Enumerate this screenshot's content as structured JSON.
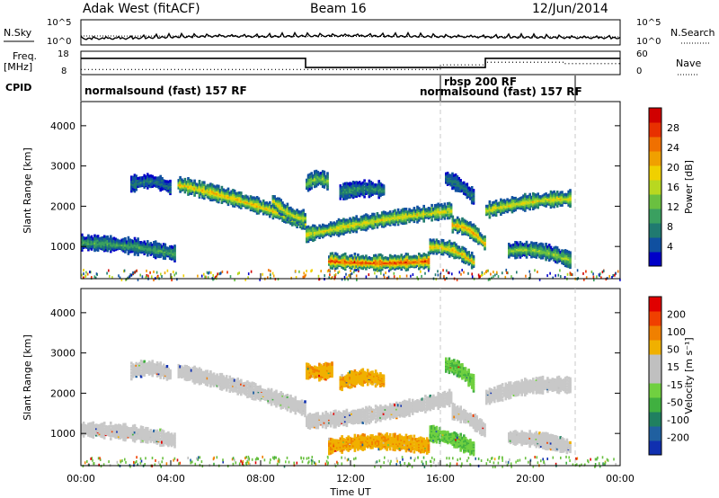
{
  "header": {
    "station": "Adak West (fitACF)",
    "beam": "Beam 16",
    "date": "12/Jun/2014"
  },
  "strip": {
    "nsky_label": "N.Sky",
    "nsearch_label": "N.Search",
    "noise_ticks": [
      "10^5",
      "10^0"
    ],
    "freq_label": "Freq.",
    "freq_unit": "[MHz]",
    "freq_ticks": [
      "18",
      "8"
    ],
    "nave_label": "Nave",
    "nave_ticks": [
      "60",
      "0"
    ],
    "cpid_label": "CPID",
    "cpid_segments": [
      {
        "label": "normalsound (fast) 157 RF"
      },
      {
        "label": "rbsp 200 RF"
      },
      {
        "label": "normalsound (fast) 157 RF"
      }
    ]
  },
  "axes": {
    "ylabel": "Slant Range [km]",
    "yticks": [
      "1000",
      "2000",
      "3000",
      "4000"
    ],
    "xlabel": "Time UT",
    "xticks": [
      "00:00",
      "04:00",
      "08:00",
      "12:00",
      "16:00",
      "20:00",
      "00:00"
    ]
  },
  "colorbars": {
    "power": {
      "label": "Power [dB]",
      "ticks": [
        "28",
        "24",
        "20",
        "16",
        "12",
        "8",
        "4"
      ],
      "colors": [
        "#0000c8",
        "#1050a0",
        "#207a70",
        "#3aa060",
        "#6ac040",
        "#b8d820",
        "#f0d000",
        "#f0a000",
        "#f07000",
        "#e83000",
        "#d00000"
      ]
    },
    "velocity": {
      "label": "Velocity [m s⁻¹]",
      "ticks": [
        "200",
        "100",
        "50",
        "15",
        "-15",
        "-50",
        "-100",
        "-200"
      ],
      "colors": [
        "#1030b0",
        "#2060a0",
        "#208060",
        "#40b040",
        "#70d040",
        "#c0c0c0",
        "#c0c0c0",
        "#f0b000",
        "#f08000",
        "#f04000",
        "#e00000"
      ]
    }
  },
  "chart_data": [
    {
      "type": "line",
      "title": "N.Sky / N.Search",
      "x_unit": "hours UT",
      "x": [
        0,
        2,
        4,
        6,
        8,
        10,
        12,
        14,
        16,
        18,
        20,
        22,
        24
      ],
      "series": [
        {
          "name": "N.Sky",
          "values": [
            0.2,
            0.22,
            0.28,
            0.32,
            0.3,
            0.33,
            0.34,
            0.32,
            0.3,
            0.28,
            0.27,
            0.25,
            0.24
          ]
        }
      ],
      "ylim": [
        0,
        1
      ]
    },
    {
      "type": "line",
      "title": "Freq. / Nave",
      "x_unit": "hours UT",
      "segments_freq_mhz": [
        {
          "x0": 0.0,
          "x1": 10.0,
          "value": 15.3
        },
        {
          "x0": 10.0,
          "x1": 18.0,
          "value": 10.7
        },
        {
          "x0": 18.0,
          "x1": 24.0,
          "value": 15.3
        }
      ],
      "segments_nave": [
        {
          "x0": 0.0,
          "x1": 10.0,
          "value": 10
        },
        {
          "x0": 10.0,
          "x1": 16.0,
          "value": 10
        },
        {
          "x0": 16.0,
          "x1": 18.0,
          "value": 24
        },
        {
          "x0": 18.0,
          "x1": 21.5,
          "value": 32
        },
        {
          "x0": 21.5,
          "x1": 24.0,
          "value": 28
        }
      ],
      "freq_range": [
        8,
        18
      ],
      "nave_range": [
        0,
        60
      ]
    },
    {
      "type": "heatmap",
      "title": "Power [dB]",
      "x_unit": "hours UT",
      "xlim": [
        0,
        24
      ],
      "ylim": [
        200,
        4600
      ],
      "ylabel": "Slant Range [km]",
      "bands": [
        {
          "x0": 0.0,
          "x1": 4.2,
          "r0": 1100,
          "r1": 820,
          "level": 10
        },
        {
          "x0": 2.2,
          "x1": 4.0,
          "r0": 2550,
          "r1": 2450,
          "level": 6
        },
        {
          "x0": 4.3,
          "x1": 10.0,
          "r0": 2550,
          "r1": 1600,
          "level": 20
        },
        {
          "x0": 8.5,
          "x1": 10.0,
          "r0": 2150,
          "r1": 1700,
          "level": 18
        },
        {
          "x0": 10.0,
          "x1": 16.5,
          "r0": 1300,
          "r1": 1900,
          "level": 18
        },
        {
          "x0": 16.5,
          "x1": 18.0,
          "r0": 1550,
          "r1": 1050,
          "level": 22
        },
        {
          "x0": 11.0,
          "x1": 15.5,
          "r0": 650,
          "r1": 650,
          "level": 27
        },
        {
          "x0": 10.0,
          "x1": 11.0,
          "r0": 2550,
          "r1": 2600,
          "level": 14
        },
        {
          "x0": 11.5,
          "x1": 13.5,
          "r0": 2350,
          "r1": 2400,
          "level": 8
        },
        {
          "x0": 15.5,
          "x1": 17.5,
          "r0": 1000,
          "r1": 600,
          "level": 20
        },
        {
          "x0": 18.0,
          "x1": 21.8,
          "r0": 1900,
          "r1": 2200,
          "level": 18
        },
        {
          "x0": 19.0,
          "x1": 21.8,
          "r0": 900,
          "r1": 650,
          "level": 14
        },
        {
          "x0": 16.2,
          "x1": 17.5,
          "r0": 2700,
          "r1": 2200,
          "level": 6
        }
      ]
    },
    {
      "type": "heatmap",
      "title": "Velocity [m s⁻¹]",
      "x_unit": "hours UT",
      "xlim": [
        0,
        24
      ],
      "ylim": [
        200,
        4600
      ],
      "ylabel": "Slant Range [km]",
      "bands": [
        {
          "x0": 0.0,
          "x1": 4.2,
          "r0": 1100,
          "r1": 820,
          "vel": -5
        },
        {
          "x0": 2.2,
          "x1": 4.0,
          "r0": 2550,
          "r1": 2450,
          "vel": -5
        },
        {
          "x0": 4.3,
          "x1": 10.0,
          "r0": 2550,
          "r1": 1600,
          "vel": -5
        },
        {
          "x0": 10.0,
          "x1": 16.5,
          "r0": 1300,
          "r1": 1900,
          "vel": -5
        },
        {
          "x0": 16.5,
          "x1": 18.0,
          "r0": 1550,
          "r1": 1050,
          "vel": -5
        },
        {
          "x0": 11.0,
          "x1": 15.5,
          "r0": 680,
          "r1": 680,
          "vel": -40
        },
        {
          "x0": 10.0,
          "x1": 11.2,
          "r0": 2550,
          "r1": 2600,
          "vel": -30
        },
        {
          "x0": 11.5,
          "x1": 13.5,
          "r0": 2250,
          "r1": 2300,
          "vel": -30
        },
        {
          "x0": 15.5,
          "x1": 17.5,
          "r0": 1000,
          "r1": 600,
          "vel": 20
        },
        {
          "x0": 18.0,
          "x1": 21.8,
          "r0": 1900,
          "r1": 2200,
          "vel": -5
        },
        {
          "x0": 19.0,
          "x1": 21.8,
          "r0": 900,
          "r1": 650,
          "vel": -5
        },
        {
          "x0": 16.2,
          "x1": 17.5,
          "r0": 2700,
          "r1": 2200,
          "vel": 20
        }
      ]
    }
  ]
}
